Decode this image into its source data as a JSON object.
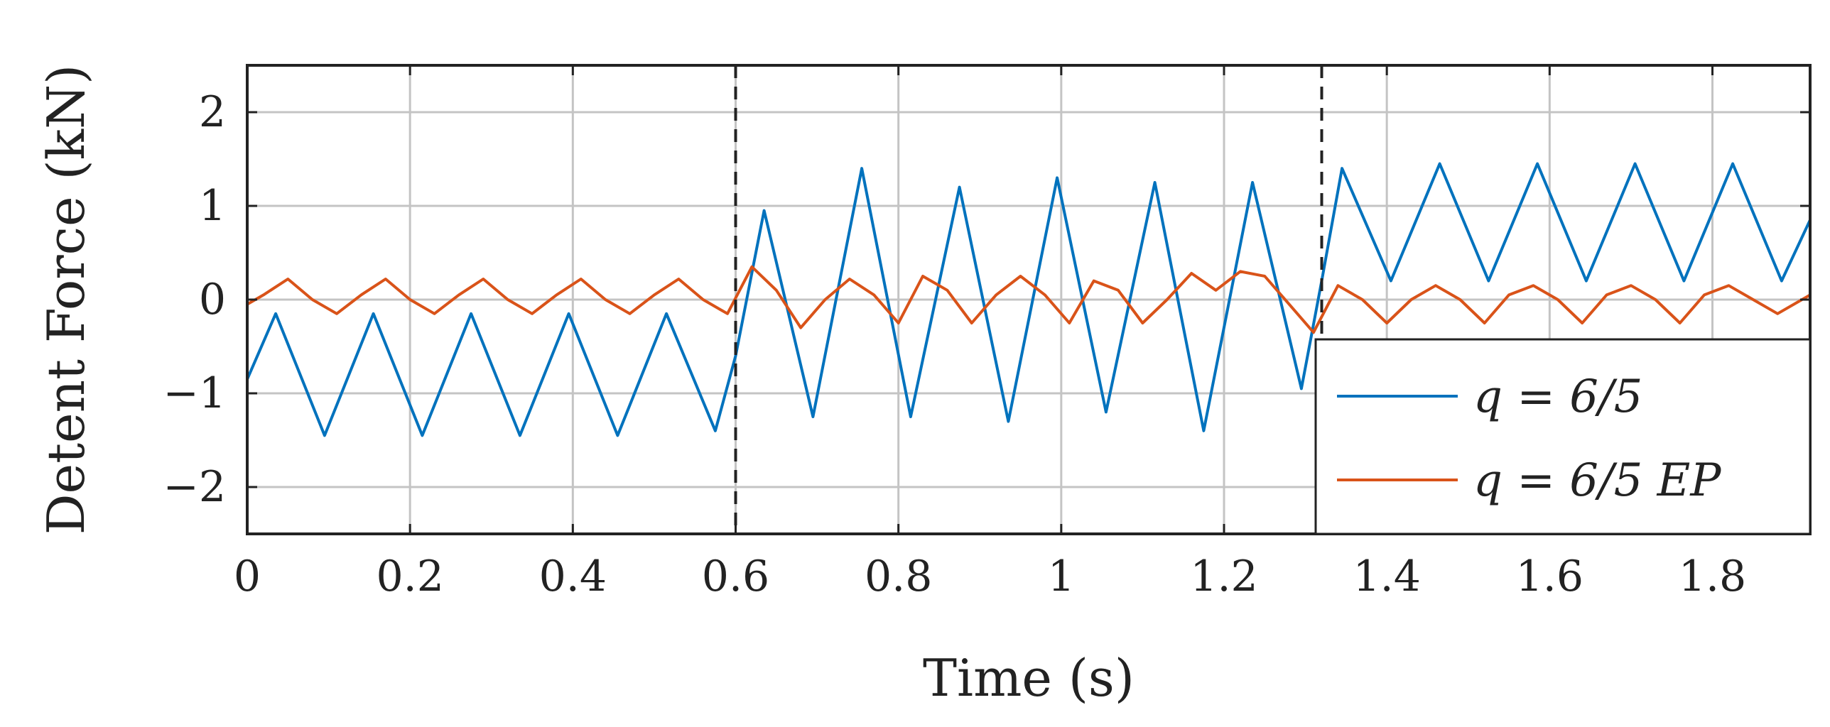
{
  "chart_data": {
    "type": "line",
    "xlabel": "Time (s)",
    "ylabel": "Detent Force (kN)",
    "xlim": [
      0,
      1.92
    ],
    "ylim": [
      -2.5,
      2.5
    ],
    "xticks": [
      "0",
      "0.2",
      "0.4",
      "0.6",
      "0.8",
      "1",
      "1.2",
      "1.4",
      "1.6",
      "1.8"
    ],
    "xtick_values": [
      0,
      0.2,
      0.4,
      0.6,
      0.8,
      1,
      1.2,
      1.4,
      1.6,
      1.8
    ],
    "yticks": [
      "−2",
      "−1",
      "0",
      "1",
      "2"
    ],
    "ytick_values": [
      -2,
      -1,
      0,
      1,
      2
    ],
    "grid": true,
    "vlines_dashed": [
      0.6,
      1.32
    ],
    "legend_position": "bottom-right",
    "series": [
      {
        "name": "q = 6/5",
        "color": "#0072BD",
        "x": [
          0,
          0.035,
          0.095,
          0.155,
          0.215,
          0.275,
          0.335,
          0.395,
          0.455,
          0.515,
          0.575,
          0.6,
          0.635,
          0.695,
          0.755,
          0.815,
          0.875,
          0.935,
          0.995,
          1.055,
          1.115,
          1.175,
          1.235,
          1.295,
          1.32,
          1.345,
          1.405,
          1.465,
          1.525,
          1.585,
          1.645,
          1.705,
          1.765,
          1.825,
          1.885,
          1.92
        ],
        "y": [
          -0.85,
          -0.15,
          -1.45,
          -0.15,
          -1.45,
          -0.15,
          -1.45,
          -0.15,
          -1.45,
          -0.15,
          -1.4,
          -0.6,
          0.95,
          -1.25,
          1.4,
          -1.25,
          1.2,
          -1.3,
          1.3,
          -1.2,
          1.25,
          -1.4,
          1.25,
          -0.95,
          0.2,
          1.4,
          0.2,
          1.45,
          0.2,
          1.45,
          0.2,
          1.45,
          0.2,
          1.45,
          0.2,
          0.85
        ]
      },
      {
        "name": "q = 6/5 EP",
        "color": "#D95319",
        "x": [
          0,
          0.02,
          0.05,
          0.08,
          0.11,
          0.14,
          0.17,
          0.2,
          0.23,
          0.26,
          0.29,
          0.32,
          0.35,
          0.38,
          0.41,
          0.44,
          0.47,
          0.5,
          0.53,
          0.56,
          0.59,
          0.62,
          0.65,
          0.68,
          0.71,
          0.74,
          0.77,
          0.8,
          0.83,
          0.86,
          0.89,
          0.92,
          0.95,
          0.98,
          1.01,
          1.04,
          1.07,
          1.1,
          1.13,
          1.16,
          1.19,
          1.22,
          1.25,
          1.28,
          1.31,
          1.34,
          1.37,
          1.4,
          1.43,
          1.46,
          1.49,
          1.52,
          1.55,
          1.58,
          1.61,
          1.64,
          1.67,
          1.7,
          1.73,
          1.76,
          1.79,
          1.82,
          1.85,
          1.88,
          1.92
        ],
        "y": [
          -0.05,
          0.05,
          0.22,
          0.0,
          -0.15,
          0.05,
          0.22,
          0.0,
          -0.15,
          0.05,
          0.22,
          0.0,
          -0.15,
          0.05,
          0.22,
          0.0,
          -0.15,
          0.05,
          0.22,
          0.0,
          -0.15,
          0.35,
          0.1,
          -0.3,
          0.0,
          0.22,
          0.05,
          -0.25,
          0.25,
          0.1,
          -0.25,
          0.05,
          0.25,
          0.05,
          -0.25,
          0.2,
          0.1,
          -0.25,
          0.0,
          0.28,
          0.1,
          0.3,
          0.25,
          -0.05,
          -0.35,
          0.15,
          0.0,
          -0.25,
          0.0,
          0.15,
          0.0,
          -0.25,
          0.05,
          0.15,
          0.0,
          -0.25,
          0.05,
          0.15,
          0.0,
          -0.25,
          0.05,
          0.15,
          0.0,
          -0.15,
          0.05
        ]
      }
    ]
  },
  "legend": {
    "items": [
      {
        "label": "q = 6/5",
        "color": "#0072BD"
      },
      {
        "label": "q = 6/5 EP",
        "color": "#D95319"
      }
    ]
  }
}
